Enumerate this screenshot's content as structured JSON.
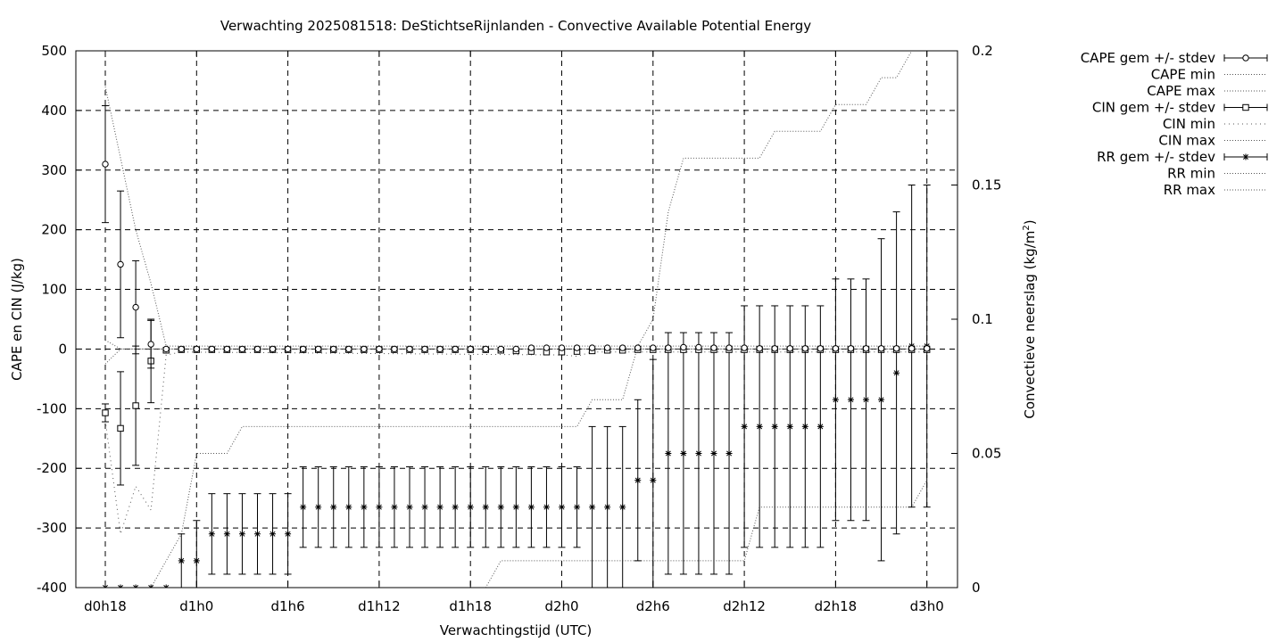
{
  "chart_data": {
    "type": "line",
    "title": "Verwachting 2025081518: DeStichtseRijnlanden - Convective Available Potential Energy",
    "xlabel": "Verwachtingstijd (UTC)",
    "ylabel": "CAPE en CIN (J/kg)",
    "y2label": "Convectieve neerslag (kg/m",
    "y2label_sup": "2",
    "y2label_end": ")",
    "x_unit": "hours since d0h0",
    "xlim": [
      18,
      75
    ],
    "ylim": [
      -400,
      500
    ],
    "y2lim": [
      0,
      0.2
    ],
    "x_ticks": [
      {
        "x": 18,
        "label": "d0h18"
      },
      {
        "x": 24,
        "label": "d1h0"
      },
      {
        "x": 30,
        "label": "d1h6"
      },
      {
        "x": 36,
        "label": "d1h12"
      },
      {
        "x": 42,
        "label": "d1h18"
      },
      {
        "x": 48,
        "label": "d2h0"
      },
      {
        "x": 54,
        "label": "d2h6"
      },
      {
        "x": 60,
        "label": "d2h12"
      },
      {
        "x": 66,
        "label": "d2h18"
      },
      {
        "x": 72,
        "label": "d3h0"
      }
    ],
    "y_ticks": [
      500,
      400,
      300,
      200,
      100,
      0,
      -100,
      -200,
      -300,
      -400
    ],
    "y2_ticks": [
      {
        "v": 0.2,
        "label": "0.2"
      },
      {
        "v": 0.15,
        "label": "0.15"
      },
      {
        "v": 0.1,
        "label": "0.1"
      },
      {
        "v": 0.05,
        "label": "0.05"
      },
      {
        "v": 0,
        "label": "0"
      }
    ],
    "grid": true,
    "legend_position": "right",
    "legend": [
      {
        "label": "CAPE gem +/- stdev",
        "style": "errorbar",
        "marker": "circle"
      },
      {
        "label": "CAPE min",
        "style": "dotted"
      },
      {
        "label": "CAPE max",
        "style": "dotted"
      },
      {
        "label": "CIN gem +/- stdev",
        "style": "errorbar",
        "marker": "square"
      },
      {
        "label": "CIN min",
        "style": "dotted-coarse"
      },
      {
        "label": "CIN max",
        "style": "dotted"
      },
      {
        "label": "RR gem +/- stdev",
        "style": "errorbar",
        "marker": "star"
      },
      {
        "label": "RR min",
        "style": "dotted"
      },
      {
        "label": "RR max",
        "style": "dotted"
      }
    ],
    "series": [
      {
        "key": "cape",
        "axis": "y",
        "marker": "circle",
        "x": [
          18,
          19,
          20,
          21,
          22,
          23,
          24,
          25,
          26,
          27,
          28,
          29,
          30,
          31,
          32,
          33,
          34,
          35,
          36,
          37,
          38,
          39,
          40,
          41,
          42,
          43,
          44,
          45,
          46,
          47,
          48,
          49,
          50,
          51,
          52,
          53,
          54,
          55,
          56,
          57,
          58,
          59,
          60,
          61,
          62,
          63,
          64,
          65,
          66,
          67,
          68,
          69,
          70,
          71,
          72
        ],
        "mean": [
          310,
          142,
          70,
          8,
          0,
          0,
          0,
          0,
          0,
          0,
          0,
          0,
          0,
          0,
          0,
          0,
          0,
          0,
          0,
          0,
          0,
          0,
          0,
          0,
          0,
          0,
          0,
          0,
          2,
          2,
          2,
          2,
          2,
          2,
          2,
          2,
          2,
          2,
          3,
          3,
          2,
          2,
          2,
          1,
          1,
          1,
          1,
          1,
          1,
          1,
          1,
          1,
          1,
          1,
          1
        ],
        "stdev": [
          98,
          123,
          78,
          40,
          0,
          0,
          0,
          0,
          0,
          0,
          0,
          0,
          0,
          0,
          0,
          0,
          0,
          0,
          0,
          0,
          0,
          0,
          0,
          0,
          0,
          0,
          0,
          0,
          0,
          0,
          0,
          0,
          0,
          0,
          0,
          0,
          0,
          0,
          0,
          0,
          0,
          0,
          0,
          0,
          0,
          0,
          0,
          0,
          0,
          0,
          0,
          0,
          0,
          0,
          0
        ]
      },
      {
        "key": "cape_min",
        "axis": "y",
        "x": [
          18,
          19,
          20,
          21,
          22,
          23,
          24,
          48,
          72
        ],
        "values": [
          15,
          0,
          0,
          0,
          0,
          0,
          0,
          0,
          0
        ]
      },
      {
        "key": "cape_max",
        "axis": "y",
        "x": [
          18,
          19,
          20,
          21,
          22,
          23,
          24,
          48,
          72
        ],
        "values": [
          440,
          320,
          200,
          110,
          5,
          5,
          5,
          5,
          5
        ]
      },
      {
        "key": "cin",
        "axis": "y",
        "marker": "square",
        "x": [
          18,
          19,
          20,
          21,
          22,
          23,
          24,
          25,
          26,
          27,
          28,
          29,
          30,
          31,
          32,
          33,
          34,
          35,
          36,
          37,
          38,
          39,
          40,
          41,
          42,
          43,
          44,
          45,
          46,
          47,
          48,
          49,
          50,
          51,
          52,
          53,
          54,
          55,
          56,
          57,
          58,
          59,
          60,
          61,
          62,
          63,
          64,
          65,
          66,
          67,
          68,
          69,
          70,
          71,
          72
        ],
        "mean": [
          -107,
          -133,
          -95,
          -20,
          -2,
          -1,
          -1,
          -1,
          -1,
          -1,
          -1,
          -1,
          -1,
          -1,
          -1,
          -1,
          -1,
          -1,
          -1,
          -1,
          -1,
          -1,
          -1,
          -1,
          -1,
          -1,
          -2,
          -3,
          -4,
          -5,
          -5,
          -4,
          -3,
          -2,
          -2,
          -1,
          -1,
          -1,
          -1,
          -1,
          -1,
          -1,
          -1,
          -1,
          -1,
          -1,
          -1,
          -1,
          -1,
          -1,
          -1,
          -1,
          -1,
          -1,
          -1
        ],
        "stdev": [
          15,
          95,
          100,
          70,
          0,
          0,
          0,
          0,
          0,
          0,
          0,
          0,
          0,
          0,
          0,
          0,
          0,
          0,
          0,
          0,
          0,
          0,
          0,
          0,
          0,
          0,
          0,
          0,
          0,
          0,
          0,
          0,
          0,
          0,
          0,
          0,
          0,
          0,
          0,
          0,
          0,
          0,
          0,
          0,
          0,
          0,
          0,
          0,
          0,
          0,
          0,
          0,
          0,
          0,
          0
        ]
      },
      {
        "key": "cin_min",
        "axis": "y",
        "x": [
          18,
          19,
          20,
          21,
          22,
          23,
          48,
          49,
          50,
          72
        ],
        "values": [
          -120,
          -310,
          -230,
          -270,
          -10,
          -5,
          -10,
          -12,
          -5,
          -5
        ]
      },
      {
        "key": "cin_max",
        "axis": "y",
        "x": [
          18,
          19,
          20,
          21,
          22,
          23,
          72
        ],
        "values": [
          -25,
          0,
          0,
          0,
          0,
          0,
          0
        ]
      },
      {
        "key": "rr",
        "axis": "y2",
        "marker": "star",
        "x": [
          18,
          19,
          20,
          21,
          22,
          23,
          24,
          25,
          26,
          27,
          28,
          29,
          30,
          31,
          32,
          33,
          34,
          35,
          36,
          37,
          38,
          39,
          40,
          41,
          42,
          43,
          44,
          45,
          46,
          47,
          48,
          49,
          50,
          51,
          52,
          53,
          54,
          55,
          56,
          57,
          58,
          59,
          60,
          61,
          62,
          63,
          64,
          65,
          66,
          67,
          68,
          69,
          70,
          71,
          72
        ],
        "mean": [
          0,
          0,
          0,
          0,
          0,
          0.01,
          0.01,
          0.02,
          0.02,
          0.02,
          0.02,
          0.02,
          0.02,
          0.03,
          0.03,
          0.03,
          0.03,
          0.03,
          0.03,
          0.03,
          0.03,
          0.03,
          0.03,
          0.03,
          0.03,
          0.03,
          0.03,
          0.03,
          0.03,
          0.03,
          0.03,
          0.03,
          0.03,
          0.03,
          0.03,
          0.04,
          0.04,
          0.05,
          0.05,
          0.05,
          0.05,
          0.05,
          0.06,
          0.06,
          0.06,
          0.06,
          0.06,
          0.06,
          0.07,
          0.07,
          0.07,
          0.07,
          0.08,
          0.09,
          0.09
        ],
        "stdev": [
          0,
          0,
          0,
          0,
          0,
          0.01,
          0.015,
          0.015,
          0.015,
          0.015,
          0.015,
          0.015,
          0.015,
          0.015,
          0.015,
          0.015,
          0.015,
          0.015,
          0.015,
          0.015,
          0.015,
          0.015,
          0.015,
          0.015,
          0.015,
          0.015,
          0.015,
          0.015,
          0.015,
          0.015,
          0.015,
          0.015,
          0.03,
          0.03,
          0.03,
          0.03,
          0.045,
          0.045,
          0.045,
          0.045,
          0.045,
          0.045,
          0.045,
          0.045,
          0.045,
          0.045,
          0.045,
          0.045,
          0.045,
          0.045,
          0.045,
          0.06,
          0.06,
          0.06,
          0.06
        ]
      },
      {
        "key": "rr_min",
        "axis": "y2",
        "x": [
          18,
          43,
          44,
          45,
          49,
          60,
          61,
          70,
          71,
          72
        ],
        "values": [
          0,
          0,
          0.01,
          0.01,
          0.01,
          0.01,
          0.03,
          0.03,
          0.03,
          0.04
        ]
      },
      {
        "key": "rr_max",
        "axis": "y2",
        "x": [
          18,
          21,
          22,
          23,
          24,
          26,
          27,
          49,
          50,
          52,
          53,
          54,
          55,
          56,
          57,
          61,
          62,
          65,
          66,
          68,
          69,
          70,
          71
        ],
        "values": [
          0,
          0,
          0.01,
          0.02,
          0.05,
          0.05,
          0.06,
          0.06,
          0.07,
          0.07,
          0.09,
          0.1,
          0.14,
          0.16,
          0.16,
          0.16,
          0.17,
          0.17,
          0.18,
          0.18,
          0.19,
          0.19,
          0.2
        ]
      }
    ]
  }
}
